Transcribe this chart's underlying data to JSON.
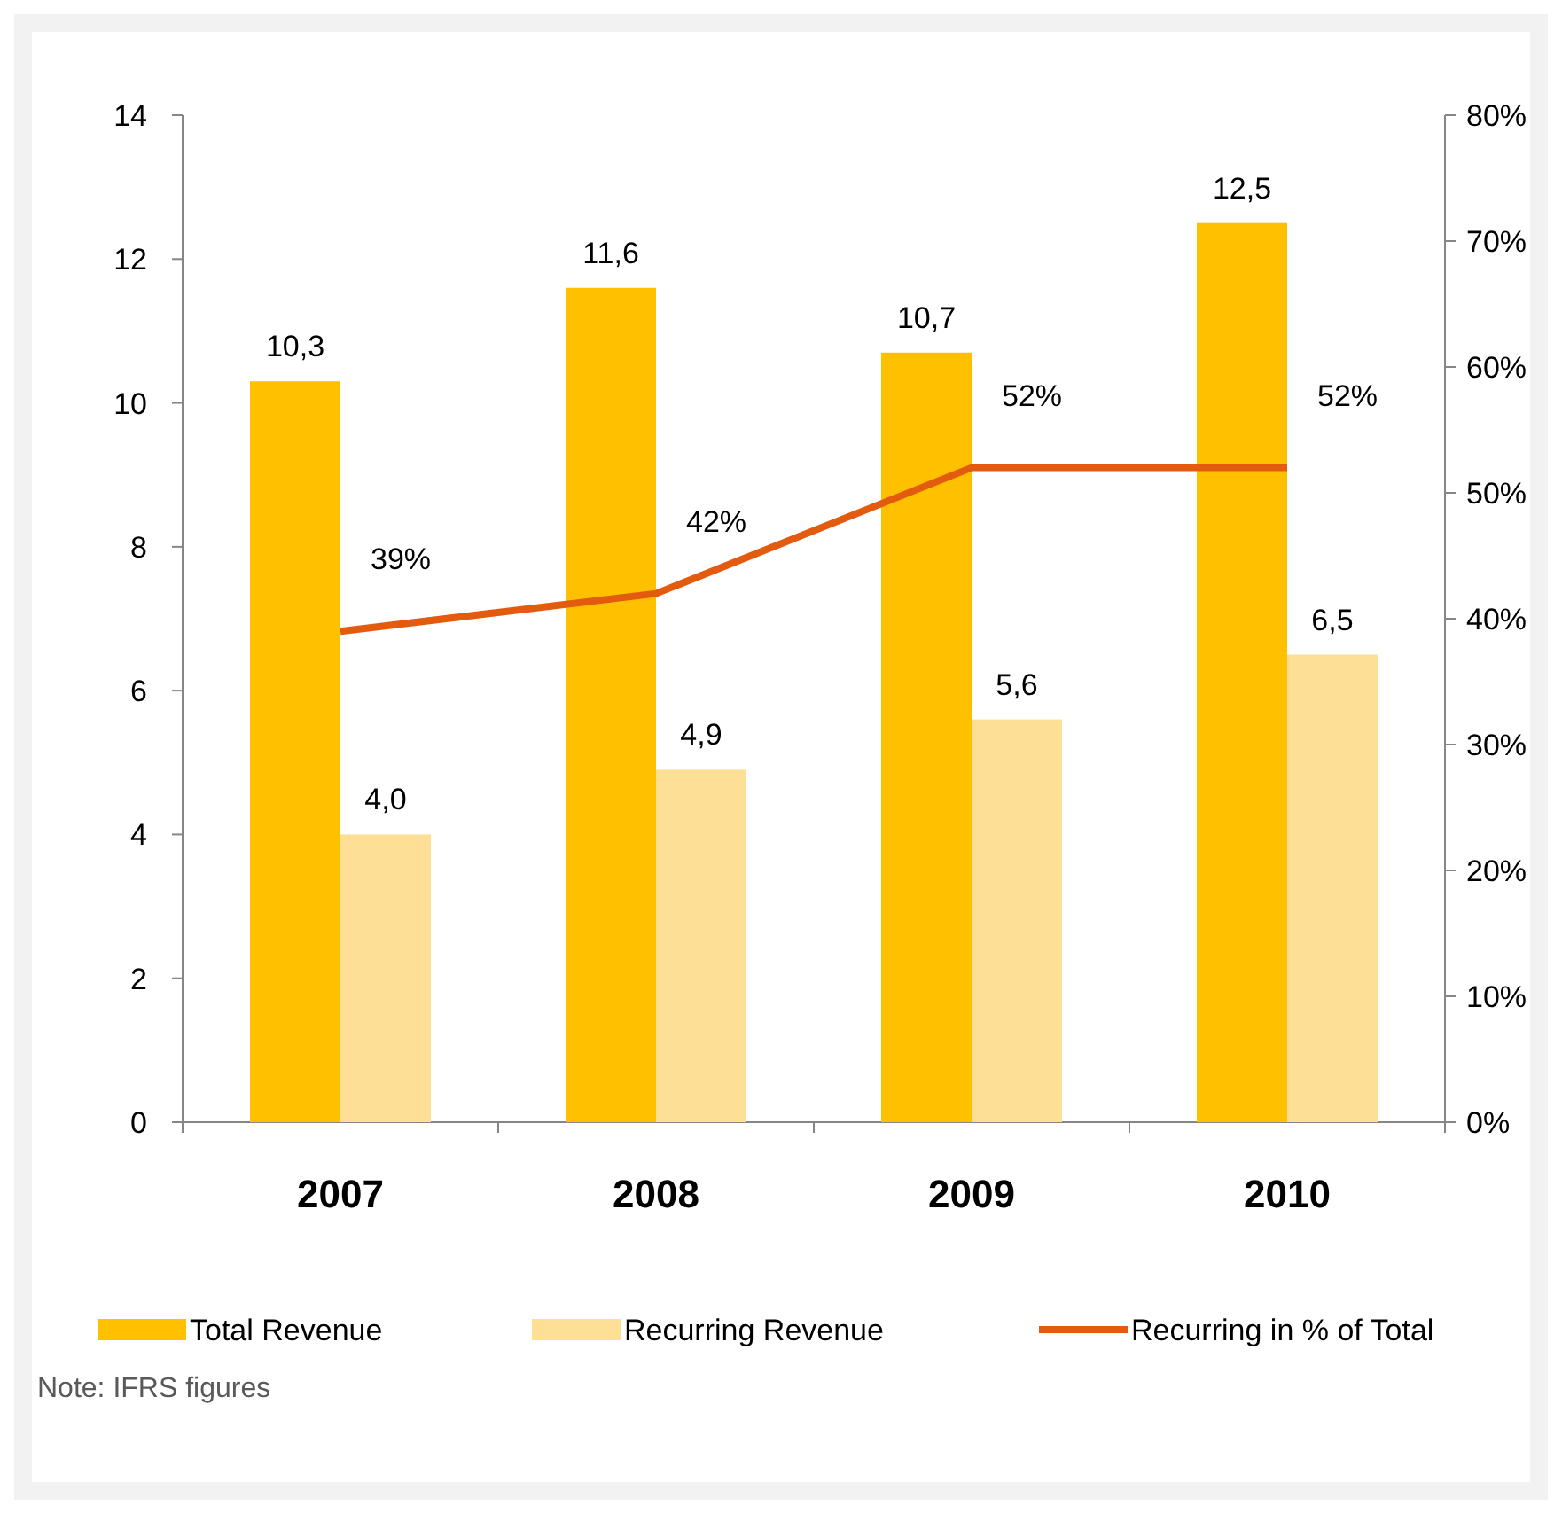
{
  "chart_data": {
    "type": "bar",
    "categories": [
      "2007",
      "2008",
      "2009",
      "2010"
    ],
    "series": [
      {
        "name": "Total Revenue",
        "color": "#ffc000",
        "values": [
          10.3,
          11.6,
          10.7,
          12.5
        ],
        "value_labels": [
          "10,3",
          "11,6",
          "10,7",
          "12,5"
        ]
      },
      {
        "name": "Recurring Revenue",
        "color": "#fddf95",
        "values": [
          4.0,
          4.9,
          5.6,
          6.5
        ],
        "value_labels": [
          "4,0",
          "4,9",
          "5,6",
          "6,5"
        ]
      },
      {
        "name": "Recurring in % of Total",
        "type": "line",
        "axis": "y2",
        "color": "#e35b0f",
        "values": [
          39,
          42,
          52,
          52
        ],
        "value_labels": [
          "39%",
          "42%",
          "52%",
          "52%"
        ]
      }
    ],
    "ylim": [
      0,
      14
    ],
    "yticks": [
      0,
      2,
      4,
      6,
      8,
      10,
      12,
      14
    ],
    "y2lim": [
      0,
      80
    ],
    "y2ticks": [
      {
        "value": 0,
        "label": "0%"
      },
      {
        "value": 10,
        "label": "10%"
      },
      {
        "value": 20,
        "label": "20%"
      },
      {
        "value": 30,
        "label": "30%"
      },
      {
        "value": 40,
        "label": "40%"
      },
      {
        "value": 50,
        "label": "50%"
      },
      {
        "value": 60,
        "label": "60%"
      },
      {
        "value": 70,
        "label": "70%"
      },
      {
        "value": 80,
        "label": "80%"
      }
    ],
    "legend": "bottom",
    "annotations": [
      "Note: IFRS figures"
    ]
  }
}
